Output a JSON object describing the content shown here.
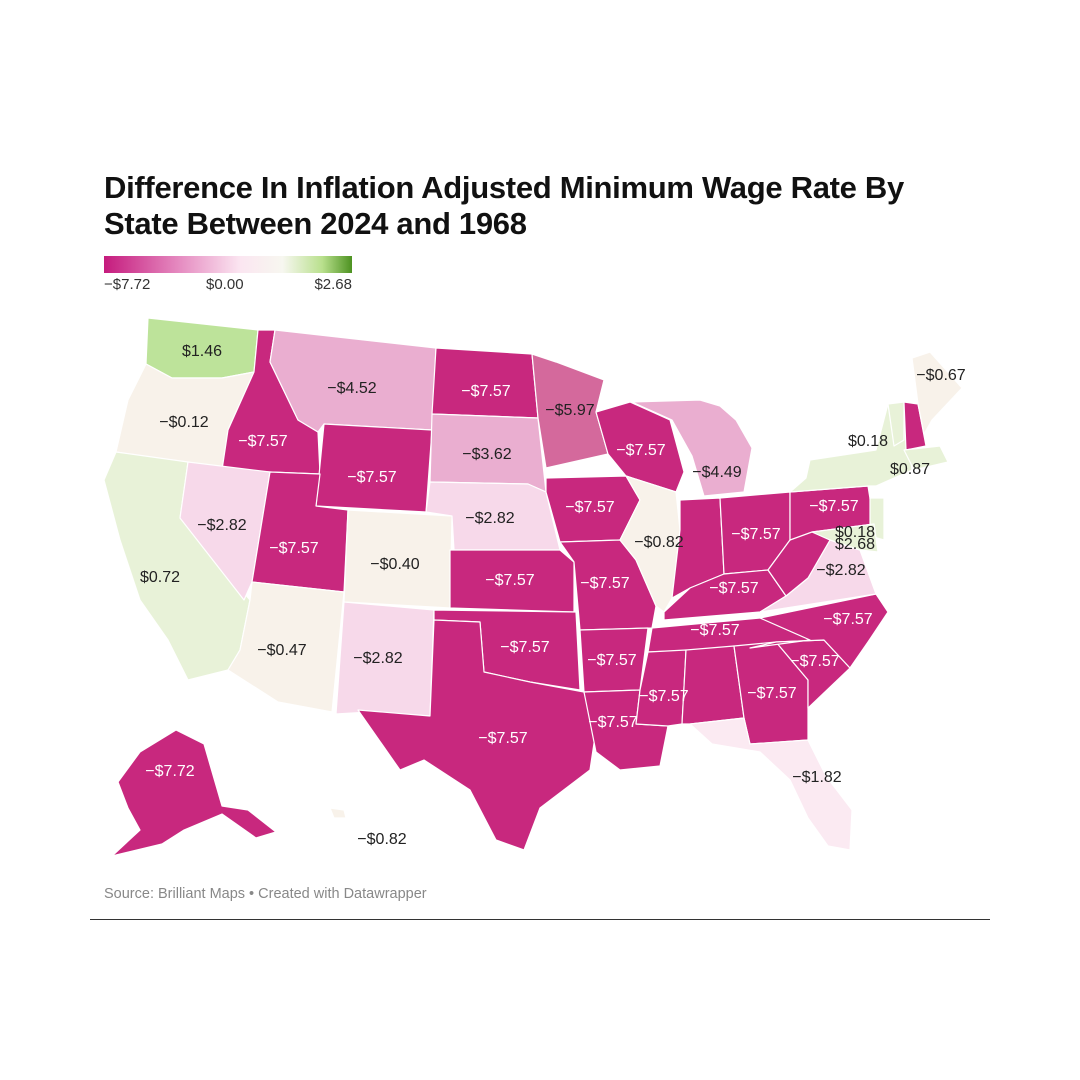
{
  "title": "Difference In Inflation Adjusted Minimum Wage Rate By State Between 2024 and 1968",
  "legend": {
    "min": "−$7.72",
    "mid": "$0.00",
    "max": "$2.68"
  },
  "source": "Source: Brilliant Maps • Created with Datawrapper",
  "colors": {
    "deep_pink": "#c8287e",
    "mid_pink": "#d4699c",
    "light_pink": "#eaaed0",
    "pale_pink": "#f7d9ea",
    "very_pale_pink": "#fbeaf2",
    "cream": "#f8f2ea",
    "pale_green": "#e8f2d8",
    "light_green": "#bde39a"
  },
  "states": [
    {
      "id": "WA",
      "value": "$1.46"
    },
    {
      "id": "OR",
      "value": "−$0.12"
    },
    {
      "id": "CA",
      "value": "$0.72"
    },
    {
      "id": "ID",
      "value": "−$7.57"
    },
    {
      "id": "NV",
      "value": "−$2.82"
    },
    {
      "id": "MT",
      "value": "−$4.52"
    },
    {
      "id": "WY",
      "value": "−$7.57"
    },
    {
      "id": "UT",
      "value": "−$7.57"
    },
    {
      "id": "AZ",
      "value": "−$0.47"
    },
    {
      "id": "CO",
      "value": "−$0.40"
    },
    {
      "id": "NM",
      "value": "−$2.82"
    },
    {
      "id": "ND",
      "value": "−$7.57"
    },
    {
      "id": "SD",
      "value": "−$3.62"
    },
    {
      "id": "NE",
      "value": "−$2.82"
    },
    {
      "id": "KS",
      "value": "−$7.57"
    },
    {
      "id": "OK",
      "value": "−$7.57"
    },
    {
      "id": "TX",
      "value": "−$7.57"
    },
    {
      "id": "MN",
      "value": "−$5.97"
    },
    {
      "id": "IA",
      "value": "−$7.57"
    },
    {
      "id": "MO",
      "value": "−$7.57"
    },
    {
      "id": "AR",
      "value": "−$7.57"
    },
    {
      "id": "LA",
      "value": "−$7.57"
    },
    {
      "id": "WI",
      "value": "−$7.57"
    },
    {
      "id": "IL",
      "value": "−$0.82"
    },
    {
      "id": "MI",
      "value": "−$4.49"
    },
    {
      "id": "IN",
      "value": ""
    },
    {
      "id": "OH",
      "value": "−$7.57"
    },
    {
      "id": "KY",
      "value": "−$7.57"
    },
    {
      "id": "TN",
      "value": "−$7.57"
    },
    {
      "id": "MS",
      "value": "−$7.57"
    },
    {
      "id": "AL",
      "value": ""
    },
    {
      "id": "GA",
      "value": "−$7.57"
    },
    {
      "id": "FL",
      "value": "−$1.82"
    },
    {
      "id": "SC",
      "value": "−$7.57"
    },
    {
      "id": "NC",
      "value": "−$7.57"
    },
    {
      "id": "VA",
      "value": "−$2.82"
    },
    {
      "id": "WV",
      "value": ""
    },
    {
      "id": "PA",
      "value": "−$7.57"
    },
    {
      "id": "NY",
      "value": "$0.18"
    },
    {
      "id": "VT",
      "value": ""
    },
    {
      "id": "NH",
      "value": ""
    },
    {
      "id": "ME",
      "value": "−$0.67"
    },
    {
      "id": "MA",
      "value": "$0.87"
    },
    {
      "id": "NJ",
      "value": "$0.18"
    },
    {
      "id": "MD",
      "value": "$2.68"
    },
    {
      "id": "AK",
      "value": "−$7.72"
    },
    {
      "id": "HI",
      "value": "−$0.82"
    }
  ]
}
